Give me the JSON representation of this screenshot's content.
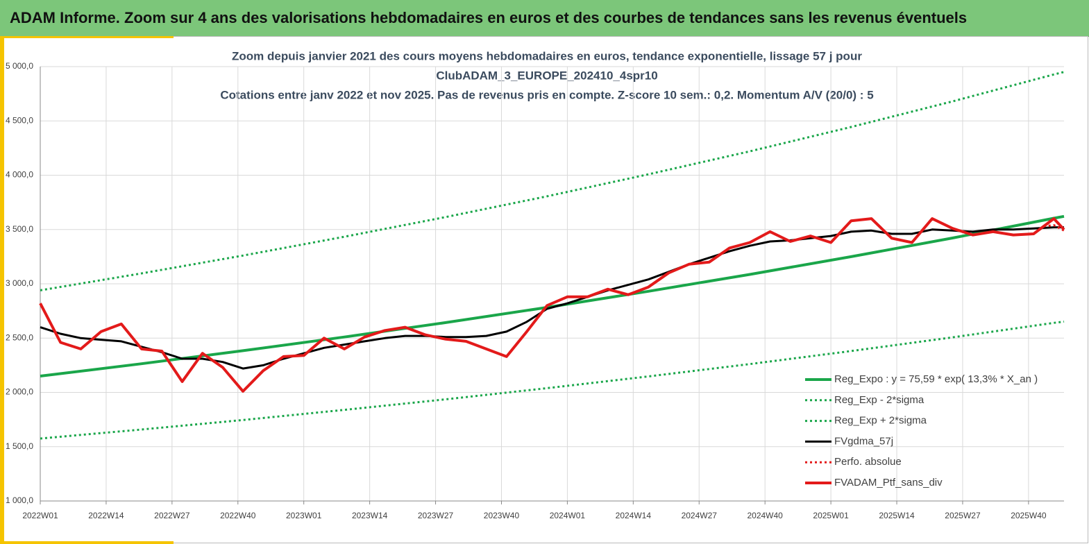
{
  "header": {
    "title": "ADAM Informe. Zoom sur 4 ans des valorisations hebdomadaires en euros et des courbes de tendances sans les revenus éventuels"
  },
  "chart_data": {
    "type": "line",
    "title": [
      "Zoom depuis janvier 2021 des cours moyens hebdomadaires  en euros, tendance exponentielle, lissage 57 j pour",
      "ClubADAM_3_EUROPE_202410_4spr10",
      "Cotations  entre janv 2022 et nov 2025. Pas de revenus pris en compte. Z-score 10 sem.: 0,2. Momentum A/V (20/0) : 5"
    ],
    "xlim": [
      0,
      202
    ],
    "xticks": [
      {
        "value": 0,
        "label": "2022W01"
      },
      {
        "value": 13,
        "label": "2022W14"
      },
      {
        "value": 26,
        "label": "2022W27"
      },
      {
        "value": 39,
        "label": "2022W40"
      },
      {
        "value": 52,
        "label": "2023W01"
      },
      {
        "value": 65,
        "label": "2023W14"
      },
      {
        "value": 78,
        "label": "2023W27"
      },
      {
        "value": 91,
        "label": "2023W40"
      },
      {
        "value": 104,
        "label": "2024W01"
      },
      {
        "value": 117,
        "label": "2024W14"
      },
      {
        "value": 130,
        "label": "2024W27"
      },
      {
        "value": 143,
        "label": "2024W40"
      },
      {
        "value": 156,
        "label": "2025W01"
      },
      {
        "value": 169,
        "label": "2025W14"
      },
      {
        "value": 182,
        "label": "2025W27"
      },
      {
        "value": 195,
        "label": "2025W40"
      }
    ],
    "ylim": [
      1000,
      5000
    ],
    "yticks": [
      {
        "value": 1000,
        "label": "1 000,0"
      },
      {
        "value": 1500,
        "label": "1 500,0"
      },
      {
        "value": 2000,
        "label": "2 000,0"
      },
      {
        "value": 2500,
        "label": "2 500,0"
      },
      {
        "value": 3000,
        "label": "3 000,0"
      },
      {
        "value": 3500,
        "label": "3 500,0"
      },
      {
        "value": 4000,
        "label": "4 000,0"
      },
      {
        "value": 4500,
        "label": "4 500,0"
      },
      {
        "value": 5000,
        "label": "5 000,0"
      }
    ],
    "grid": true,
    "legend": "lower right",
    "series": [
      {
        "name": "Reg_Expo : y = 75,59 * exp( 13,3% *  X_an )",
        "color": "#1aa64a",
        "style": "solid",
        "width": 4,
        "x": [
          0,
          20,
          40,
          60,
          80,
          100,
          120,
          140,
          160,
          180,
          200,
          202
        ],
        "values": [
          2150,
          2264,
          2384,
          2510,
          2643,
          2783,
          2931,
          3086,
          3250,
          3422,
          3604,
          3621
        ]
      },
      {
        "name": "Reg_Exp - 2*sigma",
        "color": "#1aa64a",
        "style": "dotted",
        "width": 3,
        "x": [
          0,
          20,
          40,
          60,
          80,
          100,
          120,
          140,
          160,
          180,
          200,
          202
        ],
        "values": [
          1575,
          1658,
          1746,
          1839,
          1936,
          2039,
          2147,
          2261,
          2381,
          2507,
          2640,
          2652
        ]
      },
      {
        "name": "Reg_Exp + 2*sigma",
        "color": "#1aa64a",
        "style": "dotted",
        "width": 3,
        "x": [
          0,
          20,
          40,
          60,
          80,
          100,
          120,
          140,
          160,
          180,
          200,
          202
        ],
        "values": [
          2940,
          3096,
          3260,
          3433,
          3615,
          3806,
          4008,
          4220,
          4444,
          4680,
          4928,
          4951
        ]
      },
      {
        "name": "FVgdma_57j",
        "color": "#000000",
        "style": "solid",
        "width": 3,
        "x": [
          0,
          4,
          8,
          12,
          16,
          20,
          24,
          28,
          32,
          36,
          40,
          44,
          48,
          52,
          56,
          60,
          64,
          68,
          72,
          76,
          80,
          84,
          88,
          92,
          96,
          100,
          104,
          108,
          112,
          116,
          120,
          124,
          128,
          132,
          136,
          140,
          144,
          148,
          152,
          156,
          160,
          164,
          168,
          172,
          176,
          180,
          184,
          188,
          192,
          196,
          200,
          202
        ],
        "values": [
          2600,
          2540,
          2500,
          2485,
          2470,
          2420,
          2370,
          2310,
          2310,
          2280,
          2220,
          2250,
          2310,
          2360,
          2410,
          2440,
          2470,
          2500,
          2520,
          2520,
          2510,
          2510,
          2520,
          2560,
          2650,
          2770,
          2820,
          2880,
          2940,
          2990,
          3040,
          3110,
          3180,
          3240,
          3300,
          3350,
          3390,
          3400,
          3420,
          3440,
          3480,
          3490,
          3460,
          3460,
          3500,
          3490,
          3480,
          3500,
          3500,
          3510,
          3520,
          3520
        ]
      },
      {
        "name": "Perfo. absolue",
        "color": "#e31a1a",
        "style": "dotted",
        "width": 3,
        "x": [
          198,
          200,
          202
        ],
        "values": [
          3530,
          3540,
          3490
        ]
      },
      {
        "name": "FVADAM_Ptf_sans_div",
        "color": "#e31a1a",
        "style": "solid",
        "width": 4,
        "x": [
          0,
          4,
          8,
          12,
          16,
          20,
          24,
          28,
          32,
          36,
          40,
          44,
          48,
          52,
          56,
          60,
          64,
          68,
          72,
          76,
          80,
          84,
          88,
          92,
          96,
          100,
          104,
          108,
          112,
          116,
          120,
          124,
          128,
          132,
          136,
          140,
          144,
          148,
          152,
          156,
          160,
          164,
          168,
          172,
          176,
          180,
          184,
          188,
          192,
          196,
          200,
          202
        ],
        "values": [
          2820,
          2460,
          2400,
          2560,
          2630,
          2400,
          2380,
          2100,
          2360,
          2230,
          2010,
          2200,
          2330,
          2340,
          2500,
          2400,
          2510,
          2570,
          2600,
          2530,
          2490,
          2470,
          2400,
          2330,
          2560,
          2800,
          2880,
          2880,
          2950,
          2900,
          2970,
          3100,
          3180,
          3200,
          3330,
          3380,
          3480,
          3390,
          3440,
          3380,
          3580,
          3600,
          3420,
          3380,
          3600,
          3510,
          3450,
          3480,
          3450,
          3460,
          3600,
          3500
        ]
      }
    ]
  }
}
